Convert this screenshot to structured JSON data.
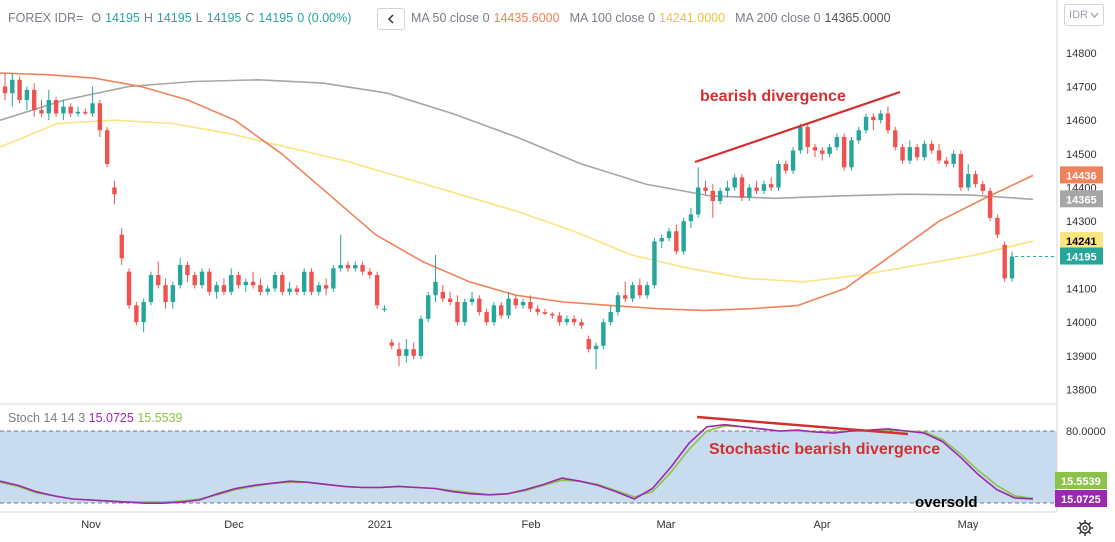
{
  "header": {
    "symbol": "FOREX IDR=",
    "o_label": "O",
    "o_value": "14195",
    "h_label": "H",
    "h_value": "14195",
    "l_label": "L",
    "l_value": "14195",
    "c_label": "C",
    "c_value": "14195",
    "change": "0 (0.00%)",
    "collapse_icon": "chevron-left-icon",
    "ma50_label": "MA 50 close 0",
    "ma50_value": "14435.6000",
    "ma100_label": "MA 100 close 0",
    "ma100_value": "14241.0000",
    "ma200_label": "MA 200 close 0",
    "ma200_value": "14365.0000",
    "currency_button": "IDR",
    "currency_icon": "chevron-down-icon"
  },
  "stoch_header": {
    "label": "Stoch 14 14 3",
    "k_value": "15.0725",
    "d_value": "15.5539"
  },
  "annotations": {
    "price_divergence": "bearish divergence",
    "stoch_divergence": "Stochastic bearish divergence",
    "oversold": "oversold"
  },
  "colors": {
    "up": "#26a69a",
    "down": "#ef5350",
    "ma50": "#f0825a",
    "ma100": "#fbe580",
    "ma200": "#a6a6a6",
    "stoch_k": "#9c27b0",
    "stoch_d": "#8bc34a",
    "band": "#c9dcef",
    "annotation": "#d32f2f"
  },
  "settings_icon": "gear-icon",
  "chart_data": [
    {
      "type": "candlestick",
      "title": "FOREX IDR=",
      "x_ticks": [
        "Nov",
        "Dec",
        "2021",
        "Feb",
        "Mar",
        "Apr",
        "May"
      ],
      "y_ticks": [
        13800,
        13900,
        14000,
        14100,
        14200,
        14300,
        14400,
        14500,
        14600,
        14700,
        14800
      ],
      "ylim": [
        13760,
        14850
      ],
      "price_labels": [
        {
          "text": "14436",
          "value": 14436,
          "color": "#f0825a"
        },
        {
          "text": "14365",
          "value": 14365,
          "color": "#a6a6a6"
        },
        {
          "text": "14241",
          "value": 14241,
          "color": "#fbe580"
        },
        {
          "text": "14195",
          "value": 14195,
          "color": "#26a69a"
        }
      ],
      "series_ohlc": [
        [
          14700,
          14740,
          14660,
          14680
        ],
        [
          14680,
          14740,
          14640,
          14720
        ],
        [
          14720,
          14730,
          14650,
          14660
        ],
        [
          14660,
          14700,
          14630,
          14690
        ],
        [
          14690,
          14710,
          14610,
          14630
        ],
        [
          14630,
          14660,
          14610,
          14620
        ],
        [
          14620,
          14690,
          14600,
          14660
        ],
        [
          14660,
          14670,
          14610,
          14620
        ],
        [
          14620,
          14660,
          14600,
          14640
        ],
        [
          14640,
          14650,
          14610,
          14620
        ],
        [
          14620,
          14640,
          14610,
          14625
        ],
        [
          14625,
          14635,
          14615,
          14620
        ],
        [
          14620,
          14700,
          14610,
          14650
        ],
        [
          14650,
          14660,
          14550,
          14570
        ],
        [
          14570,
          14580,
          14460,
          14470
        ],
        [
          14400,
          14420,
          14350,
          14380
        ],
        [
          14260,
          14280,
          14170,
          14190
        ],
        [
          14150,
          14160,
          14040,
          14050
        ],
        [
          14050,
          14060,
          13990,
          14000
        ],
        [
          14000,
          14070,
          13970,
          14060
        ],
        [
          14060,
          14150,
          14050,
          14140
        ],
        [
          14140,
          14180,
          14100,
          14110
        ],
        [
          14110,
          14130,
          14040,
          14060
        ],
        [
          14060,
          14120,
          14040,
          14110
        ],
        [
          14110,
          14190,
          14100,
          14170
        ],
        [
          14170,
          14180,
          14120,
          14140
        ],
        [
          14140,
          14150,
          14100,
          14110
        ],
        [
          14110,
          14160,
          14100,
          14150
        ],
        [
          14150,
          14160,
          14080,
          14090
        ],
        [
          14090,
          14120,
          14070,
          14110
        ],
        [
          14110,
          14130,
          14080,
          14090
        ],
        [
          14090,
          14160,
          14080,
          14140
        ],
        [
          14140,
          14150,
          14100,
          14110
        ],
        [
          14110,
          14130,
          14090,
          14120
        ],
        [
          14120,
          14150,
          14100,
          14110
        ],
        [
          14110,
          14130,
          14080,
          14090
        ],
        [
          14090,
          14110,
          14080,
          14100
        ],
        [
          14100,
          14150,
          14090,
          14140
        ],
        [
          14140,
          14150,
          14080,
          14090
        ],
        [
          14090,
          14120,
          14080,
          14100
        ],
        [
          14100,
          14110,
          14080,
          14090
        ],
        [
          14090,
          14160,
          14080,
          14150
        ],
        [
          14150,
          14160,
          14080,
          14090
        ],
        [
          14090,
          14120,
          14080,
          14110
        ],
        [
          14110,
          14130,
          14080,
          14100
        ],
        [
          14100,
          14170,
          14090,
          14160
        ],
        [
          14160,
          14260,
          14150,
          14170
        ],
        [
          14170,
          14180,
          14150,
          14160
        ],
        [
          14160,
          14180,
          14150,
          14170
        ],
        [
          14170,
          14180,
          14140,
          14150
        ],
        [
          14150,
          14160,
          14130,
          14140
        ],
        [
          14140,
          14150,
          14040,
          14050
        ],
        [
          14040,
          14050,
          14030,
          14040
        ],
        [
          13940,
          13950,
          13920,
          13930
        ],
        [
          13920,
          13940,
          13870,
          13900
        ],
        [
          13900,
          13950,
          13880,
          13920
        ],
        [
          13920,
          13940,
          13890,
          13900
        ],
        [
          13900,
          14020,
          13890,
          14010
        ],
        [
          14010,
          14090,
          14000,
          14080
        ],
        [
          14080,
          14200,
          14060,
          14120
        ],
        [
          14090,
          14110,
          14060,
          14070
        ],
        [
          14070,
          14090,
          14050,
          14060
        ],
        [
          14060,
          14080,
          13990,
          14000
        ],
        [
          14000,
          14070,
          13990,
          14060
        ],
        [
          14060,
          14090,
          14050,
          14070
        ],
        [
          14070,
          14080,
          14020,
          14030
        ],
        [
          14030,
          14040,
          13990,
          14000
        ],
        [
          14000,
          14060,
          13990,
          14050
        ],
        [
          14050,
          14060,
          14010,
          14020
        ],
        [
          14020,
          14090,
          14010,
          14070
        ],
        [
          14070,
          14080,
          14040,
          14050
        ],
        [
          14050,
          14070,
          14040,
          14060
        ],
        [
          14060,
          14080,
          14030,
          14040
        ],
        [
          14040,
          14050,
          14020,
          14030
        ],
        [
          14030,
          14040,
          14020,
          14025
        ],
        [
          14025,
          14030,
          14010,
          14020
        ],
        [
          14020,
          14030,
          13990,
          14000
        ],
        [
          14000,
          14020,
          13990,
          14010
        ],
        [
          14010,
          14020,
          13990,
          14000
        ],
        [
          14000,
          14010,
          13980,
          13990
        ],
        [
          13950,
          13960,
          13910,
          13920
        ],
        [
          13920,
          13940,
          13860,
          13930
        ],
        [
          13930,
          14010,
          13920,
          14000
        ],
        [
          14000,
          14050,
          13990,
          14030
        ],
        [
          14030,
          14090,
          14020,
          14080
        ],
        [
          14080,
          14120,
          14060,
          14070
        ],
        [
          14070,
          14120,
          14060,
          14110
        ],
        [
          14110,
          14130,
          14070,
          14080
        ],
        [
          14080,
          14120,
          14070,
          14110
        ],
        [
          14110,
          14250,
          14100,
          14240
        ],
        [
          14240,
          14260,
          14220,
          14250
        ],
        [
          14250,
          14280,
          14240,
          14270
        ],
        [
          14270,
          14290,
          14200,
          14210
        ],
        [
          14210,
          14310,
          14200,
          14300
        ],
        [
          14300,
          14340,
          14280,
          14320
        ],
        [
          14320,
          14460,
          14310,
          14400
        ],
        [
          14400,
          14420,
          14380,
          14390
        ],
        [
          14390,
          14410,
          14310,
          14360
        ],
        [
          14360,
          14400,
          14350,
          14390
        ],
        [
          14390,
          14420,
          14370,
          14400
        ],
        [
          14400,
          14440,
          14390,
          14430
        ],
        [
          14430,
          14440,
          14360,
          14370
        ],
        [
          14370,
          14410,
          14360,
          14400
        ],
        [
          14400,
          14420,
          14380,
          14390
        ],
        [
          14390,
          14420,
          14380,
          14410
        ],
        [
          14410,
          14430,
          14390,
          14400
        ],
        [
          14400,
          14480,
          14390,
          14470
        ],
        [
          14470,
          14480,
          14440,
          14450
        ],
        [
          14450,
          14520,
          14440,
          14510
        ],
        [
          14510,
          14590,
          14500,
          14580
        ],
        [
          14580,
          14590,
          14500,
          14520
        ],
        [
          14520,
          14530,
          14490,
          14510
        ],
        [
          14510,
          14520,
          14480,
          14500
        ],
        [
          14500,
          14530,
          14490,
          14520
        ],
        [
          14520,
          14560,
          14510,
          14550
        ],
        [
          14550,
          14560,
          14450,
          14460
        ],
        [
          14460,
          14550,
          14450,
          14540
        ],
        [
          14540,
          14580,
          14530,
          14570
        ],
        [
          14570,
          14620,
          14560,
          14610
        ],
        [
          14610,
          14620,
          14570,
          14600
        ],
        [
          14600,
          14630,
          14590,
          14620
        ],
        [
          14620,
          14640,
          14560,
          14570
        ],
        [
          14570,
          14580,
          14510,
          14520
        ],
        [
          14520,
          14530,
          14470,
          14480
        ],
        [
          14480,
          14540,
          14470,
          14520
        ],
        [
          14520,
          14530,
          14480,
          14490
        ],
        [
          14490,
          14540,
          14480,
          14530
        ],
        [
          14530,
          14540,
          14500,
          14510
        ],
        [
          14510,
          14530,
          14470,
          14480
        ],
        [
          14480,
          14490,
          14460,
          14470
        ],
        [
          14470,
          14510,
          14460,
          14500
        ],
        [
          14500,
          14510,
          14390,
          14400
        ],
        [
          14400,
          14470,
          14390,
          14440
        ],
        [
          14440,
          14450,
          14400,
          14410
        ],
        [
          14410,
          14420,
          14380,
          14390
        ],
        [
          14390,
          14400,
          14300,
          14310
        ],
        [
          14310,
          14320,
          14250,
          14260
        ],
        [
          14230,
          14240,
          14120,
          14130
        ],
        [
          14130,
          14210,
          14120,
          14195
        ]
      ],
      "ma50": [
        14740,
        14735,
        14725,
        14700,
        14660,
        14600,
        14500,
        14380,
        14260,
        14180,
        14120,
        14080,
        14060,
        14050,
        14040,
        14035,
        14040,
        14050,
        14100,
        14200,
        14300,
        14370,
        14436
      ],
      "ma100": [
        14520,
        14590,
        14600,
        14590,
        14560,
        14520,
        14480,
        14430,
        14380,
        14330,
        14270,
        14200,
        14160,
        14130,
        14120,
        14140,
        14170,
        14200,
        14241
      ],
      "ma200": [
        14600,
        14660,
        14700,
        14715,
        14720,
        14710,
        14680,
        14620,
        14550,
        14470,
        14410,
        14375,
        14368,
        14375,
        14380,
        14378,
        14365
      ]
    },
    {
      "type": "line",
      "title": "Stoch 14 14 3",
      "y_ticks": [
        80,
        15
      ],
      "ylim": [
        0,
        100
      ],
      "band": [
        20,
        80
      ],
      "price_labels": [
        {
          "text": "80.0000",
          "value": 80,
          "color": "#333333"
        },
        {
          "text": "15.5539",
          "value": 15.5539,
          "color": "#8bc34a"
        },
        {
          "text": "15.0725",
          "value": 15.0725,
          "color": "#9c27b0"
        }
      ],
      "series": [
        {
          "name": "%K",
          "values": [
            32,
            28,
            22,
            18,
            15,
            14,
            13,
            12,
            11,
            11,
            12,
            14,
            20,
            25,
            28,
            30,
            32,
            31,
            29,
            27,
            26,
            26,
            27,
            26,
            25,
            22,
            20,
            19,
            20,
            24,
            29,
            35,
            32,
            28,
            22,
            15,
            25,
            45,
            68,
            84,
            86,
            84,
            82,
            80,
            81,
            79,
            78,
            80,
            81,
            82,
            80,
            78,
            70,
            55,
            38,
            24,
            16,
            15.07
          ]
        },
        {
          "name": "%D",
          "values": [
            31,
            27,
            21,
            18,
            15,
            14,
            13,
            12,
            12,
            12,
            13,
            15,
            19,
            24,
            27,
            30,
            31,
            31,
            29,
            27,
            26,
            26,
            27,
            26,
            25,
            23,
            21,
            19,
            20,
            23,
            28,
            33,
            32,
            29,
            23,
            17,
            22,
            40,
            62,
            80,
            85,
            84,
            82,
            80,
            80,
            79,
            79,
            80,
            80,
            81,
            80,
            79,
            72,
            58,
            42,
            28,
            18,
            15.55
          ]
        }
      ]
    }
  ]
}
